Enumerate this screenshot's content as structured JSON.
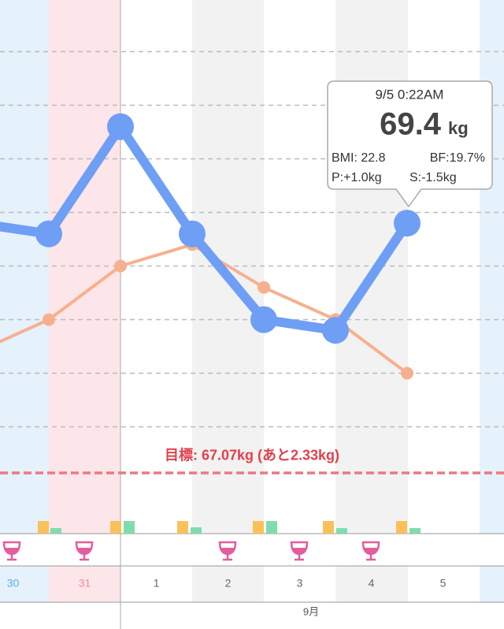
{
  "chart_data": {
    "type": "line",
    "categories": [
      "30",
      "31",
      "1",
      "2",
      "3",
      "4",
      "5"
    ],
    "month_label": "9月",
    "series": [
      {
        "color": "#6f9ef5",
        "values": [
          69.4,
          69.3,
          70.3,
          69.3,
          68.5,
          68.4,
          69.4
        ]
      },
      {
        "color": "#f7b08f",
        "values": [
          68.2,
          68.5,
          69.0,
          69.2,
          68.8,
          68.5,
          68.0
        ]
      }
    ],
    "ylim": [
      66.5,
      71.5
    ],
    "yticks": [
      67.5,
      68,
      68.5,
      69,
      69.5,
      70,
      70.5,
      71
    ],
    "grid": true,
    "goal": {
      "value": 67.07,
      "label": "目標: 67.07kg (あと2.33kg)"
    },
    "tooltip": {
      "date": "9/5 0:22AM",
      "value": 69.4,
      "unit": "kg",
      "bmi": "BMI: 22.8",
      "bf": "BF:19.7%",
      "p": "P:+1.0kg",
      "s": "S:-1.5kg"
    }
  }
}
